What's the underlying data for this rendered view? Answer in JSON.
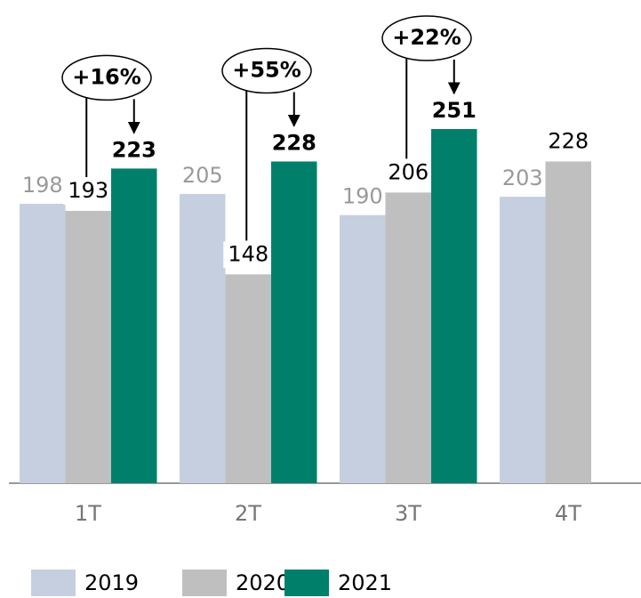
{
  "chart_data": {
    "type": "bar",
    "categories": [
      "1T",
      "2T",
      "3T",
      "4T"
    ],
    "series": [
      {
        "name": "2019",
        "color": "#c5cfe0",
        "values": [
          198,
          205,
          190,
          203
        ]
      },
      {
        "name": "2020",
        "color": "#bfbfbf",
        "values": [
          193,
          148,
          206,
          228
        ]
      },
      {
        "name": "2021",
        "color": "#00806a",
        "values": [
          223,
          228,
          251,
          null
        ]
      }
    ],
    "annotations": [
      "+16%",
      "+55%",
      "+22%"
    ]
  }
}
